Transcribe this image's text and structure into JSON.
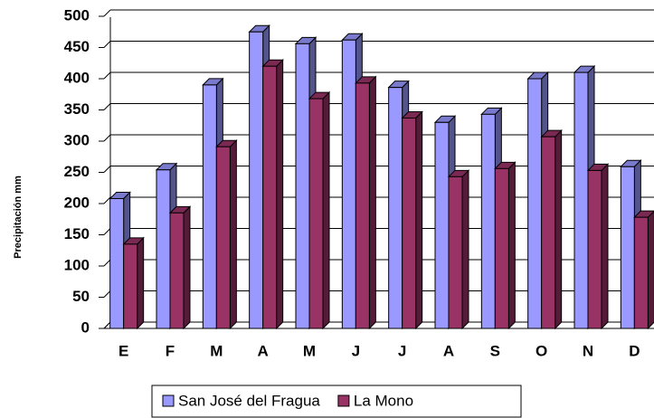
{
  "chart_data": {
    "type": "bar",
    "y_label": "Precipitación mm",
    "categories": [
      "E",
      "F",
      "M",
      "A",
      "M",
      "J",
      "J",
      "A",
      "S",
      "O",
      "N",
      "D"
    ],
    "series": [
      {
        "name": "San José del Fragua",
        "color": "#9999ff",
        "values": [
          208,
          254,
          390,
          475,
          456,
          462,
          386,
          330,
          343,
          400,
          410,
          259
        ]
      },
      {
        "name": "La Mono",
        "color": "#993366",
        "values": [
          135,
          185,
          291,
          420,
          368,
          393,
          337,
          243,
          256,
          307,
          253,
          178
        ]
      }
    ],
    "ylim": [
      0,
      500
    ],
    "yticks": [
      0,
      50,
      100,
      150,
      200,
      250,
      300,
      350,
      400,
      450,
      500
    ],
    "grid": true,
    "legend": "bottom"
  }
}
